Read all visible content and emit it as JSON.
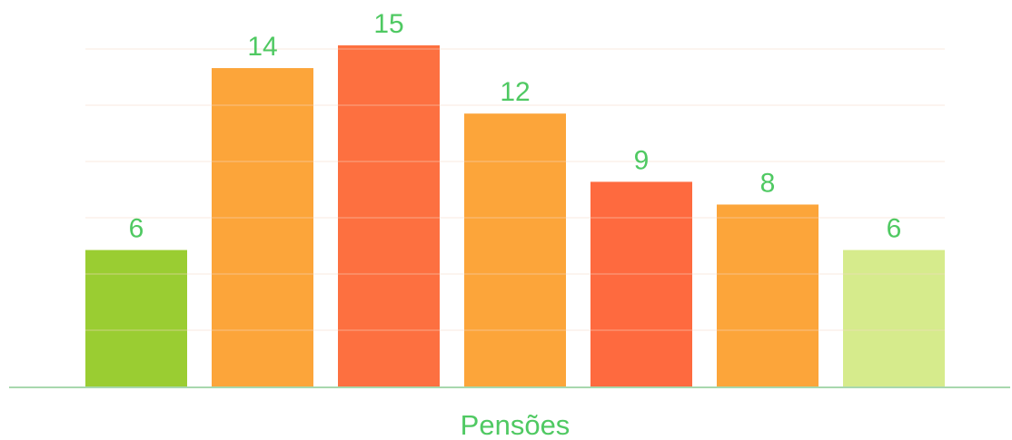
{
  "chart_data": {
    "type": "bar",
    "categories": [
      "",
      "",
      "",
      "",
      "",
      "",
      ""
    ],
    "values": [
      6,
      14,
      15,
      12,
      9,
      8,
      6
    ],
    "data_labels": [
      "6",
      "14",
      "15",
      "12",
      "9",
      "8",
      "6"
    ],
    "bar_colors": [
      "#9acd32",
      "#fca53a",
      "#fd7040",
      "#fca53a",
      "#fe6a3f",
      "#fca53a",
      "#d6eb8c"
    ],
    "label_color": "#4fc962",
    "axis_color": "#a8d8ae",
    "gridline_color": "#f6d9c4",
    "title": "",
    "xlabel": "Pensões",
    "ylabel": "",
    "ylim": [
      0,
      15
    ],
    "grid": true,
    "legend": "none"
  }
}
